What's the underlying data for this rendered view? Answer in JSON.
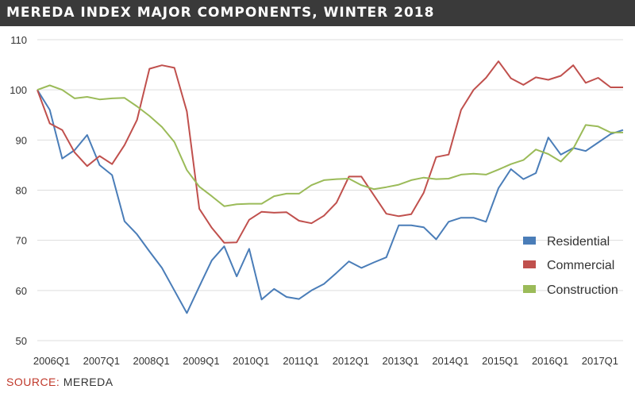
{
  "title": "MEREDA INDEX MAJOR COMPONENTS, WINTER 2018",
  "source": {
    "label": "SOURCE:",
    "value": "MEREDA"
  },
  "colors": {
    "title_bg": "#3a3a3a",
    "grid": "#dddddd",
    "source_label": "#c0392b"
  },
  "chart_data": {
    "type": "line",
    "ylim": [
      50,
      110
    ],
    "yticks": [
      50,
      60,
      70,
      80,
      90,
      100,
      110
    ],
    "grid": true,
    "legend_position": "right",
    "xlim": [
      2006.0,
      2017.75
    ],
    "xticks": [
      {
        "label": "2006Q1",
        "value": 2006.0
      },
      {
        "label": "2007Q1",
        "value": 2007.0
      },
      {
        "label": "2008Q1",
        "value": 2008.0
      },
      {
        "label": "2009Q1",
        "value": 2009.0
      },
      {
        "label": "2010Q1",
        "value": 2010.0
      },
      {
        "label": "2011Q1",
        "value": 2011.0
      },
      {
        "label": "2012Q1",
        "value": 2012.0
      },
      {
        "label": "2013Q1",
        "value": 2013.0
      },
      {
        "label": "2014Q1",
        "value": 2014.0
      },
      {
        "label": "2015Q1",
        "value": 2015.0
      },
      {
        "label": "2016Q1",
        "value": 2016.0
      },
      {
        "label": "2017Q1",
        "value": 2017.0
      }
    ],
    "x": [
      2006.0,
      2006.25,
      2006.5,
      2006.75,
      2007.0,
      2007.25,
      2007.5,
      2007.75,
      2008.0,
      2008.25,
      2008.5,
      2008.75,
      2009.0,
      2009.25,
      2009.5,
      2009.75,
      2010.0,
      2010.25,
      2010.5,
      2010.75,
      2011.0,
      2011.25,
      2011.5,
      2011.75,
      2012.0,
      2012.25,
      2012.5,
      2012.75,
      2013.0,
      2013.25,
      2013.5,
      2013.75,
      2014.0,
      2014.25,
      2014.5,
      2014.75,
      2015.0,
      2015.25,
      2015.5,
      2015.75,
      2016.0,
      2016.25,
      2016.5,
      2016.75,
      2017.0,
      2017.25,
      2017.5,
      2017.75
    ],
    "series": [
      {
        "name": "Residential",
        "color": "#4a7db8",
        "values": [
          100,
          96,
          86.3,
          88,
          91,
          85,
          83,
          73.8,
          71.2,
          67.8,
          64.5,
          60,
          55.5,
          60.8,
          66,
          68.8,
          62.8,
          68.3,
          58.2,
          60.3,
          58.7,
          58.3,
          60,
          61.3,
          63.5,
          65.8,
          64.5,
          65.6,
          66.6,
          73,
          73,
          72.6,
          70.2,
          73.7,
          74.5,
          74.5,
          73.7,
          80.4,
          84.2,
          82.2,
          83.4,
          90.5,
          87.1,
          88.4,
          87.8,
          89.5,
          91.2,
          92
        ]
      },
      {
        "name": "Commercial",
        "color": "#c0504d",
        "values": [
          100,
          93.3,
          92,
          87.5,
          84.8,
          86.8,
          85.2,
          89,
          94,
          104.2,
          104.9,
          104.4,
          95.7,
          76.3,
          72.5,
          69.5,
          69.6,
          74.1,
          75.7,
          75.5,
          75.6,
          73.9,
          73.4,
          74.9,
          77.5,
          82.7,
          82.7,
          79,
          75.3,
          74.8,
          75.2,
          79.5,
          86.6,
          87.1,
          96,
          100,
          102.4,
          105.7,
          102.3,
          101,
          102.5,
          102,
          102.8,
          104.9,
          101.4,
          102.4,
          100.5,
          100.5
        ]
      },
      {
        "name": "Construction",
        "color": "#9bbb59",
        "values": [
          100,
          100.9,
          100,
          98.3,
          98.6,
          98.1,
          98.3,
          98.4,
          96.7,
          94.8,
          92.6,
          89.6,
          84,
          80.7,
          78.8,
          76.8,
          77.2,
          77.3,
          77.3,
          78.8,
          79.3,
          79.3,
          81,
          82,
          82.2,
          82.3,
          81,
          80.2,
          80.6,
          81.1,
          82,
          82.5,
          82.2,
          82.3,
          83.1,
          83.3,
          83.1,
          84.1,
          85.2,
          86,
          88.1,
          87.2,
          85.7,
          88.3,
          93,
          92.7,
          91.5,
          91.5
        ]
      }
    ]
  }
}
